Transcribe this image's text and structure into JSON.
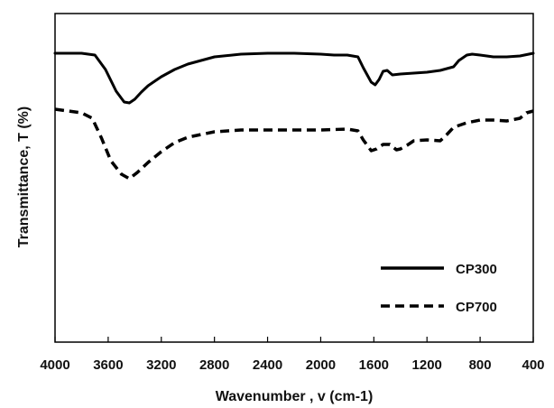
{
  "chart_data": {
    "type": "line",
    "title": "",
    "xlabel": "Wavenumber , v (cm-1)",
    "ylabel": "Transmittance, T (%)",
    "xlim": [
      4000,
      400
    ],
    "x_reversed": true,
    "y_ticks_shown": false,
    "x_ticks": [
      4000,
      3600,
      3200,
      2800,
      2400,
      2000,
      1600,
      1200,
      800,
      400
    ],
    "x_tick_labels": [
      "4000",
      "3600",
      "3200",
      "2800",
      "2400",
      "2000",
      "1600",
      "1200",
      "800",
      "400"
    ],
    "legend_placement": "bottom-right",
    "grid": false,
    "series": [
      {
        "name": "CP300",
        "style": "solid",
        "color": "#000000",
        "points": [
          [
            4000,
            44
          ],
          [
            3900,
            44
          ],
          [
            3800,
            44
          ],
          [
            3700,
            46
          ],
          [
            3620,
            62
          ],
          [
            3540,
            86
          ],
          [
            3480,
            98
          ],
          [
            3440,
            99
          ],
          [
            3400,
            95
          ],
          [
            3350,
            87
          ],
          [
            3300,
            80
          ],
          [
            3250,
            75
          ],
          [
            3200,
            70
          ],
          [
            3100,
            62
          ],
          [
            3000,
            56
          ],
          [
            2900,
            52
          ],
          [
            2800,
            48
          ],
          [
            2600,
            45
          ],
          [
            2400,
            44
          ],
          [
            2200,
            44
          ],
          [
            2000,
            45
          ],
          [
            1900,
            46
          ],
          [
            1800,
            46
          ],
          [
            1720,
            48
          ],
          [
            1680,
            60
          ],
          [
            1650,
            68
          ],
          [
            1620,
            76
          ],
          [
            1590,
            79
          ],
          [
            1560,
            73
          ],
          [
            1530,
            64
          ],
          [
            1500,
            63
          ],
          [
            1460,
            68
          ],
          [
            1400,
            67
          ],
          [
            1300,
            66
          ],
          [
            1200,
            65
          ],
          [
            1100,
            63
          ],
          [
            1000,
            59
          ],
          [
            960,
            52
          ],
          [
            900,
            46
          ],
          [
            860,
            45
          ],
          [
            800,
            46
          ],
          [
            700,
            48
          ],
          [
            600,
            48
          ],
          [
            500,
            47
          ],
          [
            400,
            44
          ]
        ]
      },
      {
        "name": "CP700",
        "style": "dashed",
        "color": "#000000",
        "points": [
          [
            4000,
            106
          ],
          [
            3900,
            108
          ],
          [
            3800,
            110
          ],
          [
            3720,
            116
          ],
          [
            3650,
            138
          ],
          [
            3580,
            163
          ],
          [
            3500,
            178
          ],
          [
            3440,
            183
          ],
          [
            3380,
            176
          ],
          [
            3300,
            165
          ],
          [
            3200,
            153
          ],
          [
            3100,
            143
          ],
          [
            3000,
            137
          ],
          [
            2900,
            134
          ],
          [
            2800,
            131
          ],
          [
            2600,
            129
          ],
          [
            2400,
            129
          ],
          [
            2200,
            129
          ],
          [
            2000,
            129
          ],
          [
            1800,
            128
          ],
          [
            1720,
            130
          ],
          [
            1680,
            140
          ],
          [
            1620,
            152
          ],
          [
            1580,
            150
          ],
          [
            1530,
            145
          ],
          [
            1480,
            145
          ],
          [
            1430,
            151
          ],
          [
            1400,
            150
          ],
          [
            1350,
            146
          ],
          [
            1300,
            141
          ],
          [
            1200,
            140
          ],
          [
            1100,
            141
          ],
          [
            1050,
            134
          ],
          [
            1000,
            126
          ],
          [
            900,
            121
          ],
          [
            800,
            118
          ],
          [
            700,
            118
          ],
          [
            600,
            119
          ],
          [
            500,
            116
          ],
          [
            450,
            110
          ],
          [
            400,
            108
          ]
        ]
      }
    ]
  }
}
